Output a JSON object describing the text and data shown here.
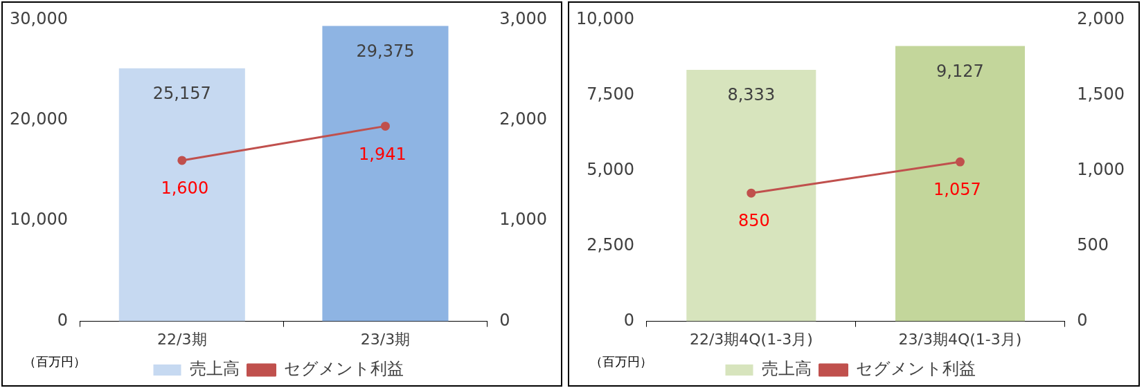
{
  "chart_data": [
    {
      "type": "bar",
      "categories": [
        "22/3期",
        "23/3期"
      ],
      "series": [
        {
          "name": "売上高",
          "colors": [
            "#c6d9f1",
            "#8eb4e3"
          ],
          "values": [
            25157,
            29375
          ],
          "value_labels": [
            "25,157",
            "29,375"
          ]
        },
        {
          "name": "セグメント利益",
          "type": "line",
          "axis": "y2",
          "color": "#c0504d",
          "values": [
            1600,
            1941
          ],
          "value_labels": [
            "1,600",
            "1,941"
          ]
        }
      ],
      "ylim": [
        0,
        30000
      ],
      "yticks": [
        {
          "value": 0,
          "label": "0"
        },
        {
          "value": 10000,
          "label": "10,000"
        },
        {
          "value": 20000,
          "label": "20,000"
        },
        {
          "value": 30000,
          "label": "30,000"
        }
      ],
      "y2lim": [
        0,
        3000
      ],
      "y2ticks": [
        {
          "value": 0,
          "label": "0"
        },
        {
          "value": 1000,
          "label": "1,000"
        },
        {
          "value": 2000,
          "label": "2,000"
        },
        {
          "value": 3000,
          "label": "3,000"
        }
      ],
      "annotations": [
        "（百万円）"
      ],
      "legend": "bottom",
      "marker": "circle",
      "line_style": "solid",
      "grid": false
    },
    {
      "type": "bar",
      "categories": [
        "22/3期4Q(1-3月)",
        "23/3期4Q(1-3月)"
      ],
      "series": [
        {
          "name": "売上高",
          "colors": [
            "#d7e4bd",
            "#c3d69b"
          ],
          "values": [
            8333,
            9127
          ],
          "value_labels": [
            "8,333",
            "9,127"
          ]
        },
        {
          "name": "セグメント利益",
          "type": "line",
          "axis": "y2",
          "color": "#c0504d",
          "values": [
            850,
            1057
          ],
          "value_labels": [
            "850",
            "1,057"
          ]
        }
      ],
      "ylim": [
        0,
        10000
      ],
      "yticks": [
        {
          "value": 0,
          "label": "0"
        },
        {
          "value": 2500,
          "label": "2,500"
        },
        {
          "value": 5000,
          "label": "5,000"
        },
        {
          "value": 7500,
          "label": "7,500"
        },
        {
          "value": 10000,
          "label": "10,000"
        }
      ],
      "y2lim": [
        0,
        2000
      ],
      "y2ticks": [
        {
          "value": 0,
          "label": "0"
        },
        {
          "value": 500,
          "label": "500"
        },
        {
          "value": 1000,
          "label": "1,000"
        },
        {
          "value": 1500,
          "label": "1,500"
        },
        {
          "value": 2000,
          "label": "2,000"
        }
      ],
      "annotations": [
        "（百万円）"
      ],
      "legend": "bottom",
      "marker": "circle",
      "line_style": "solid",
      "grid": false
    }
  ]
}
